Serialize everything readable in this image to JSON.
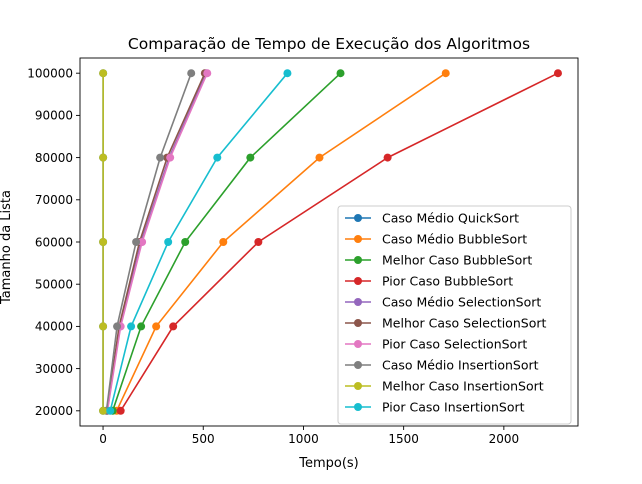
{
  "chart_data": {
    "type": "line",
    "title": "Comparação de Tempo de Execução dos Algoritmos",
    "xlabel": "Tempo(s)",
    "ylabel": "Tamanho da Lista",
    "xlim": [
      -115,
      2370
    ],
    "ylim": [
      16400,
      103600
    ],
    "x_ticks": [
      0,
      500,
      1000,
      1500,
      2000
    ],
    "y_ticks": [
      20000,
      30000,
      40000,
      50000,
      60000,
      70000,
      80000,
      90000,
      100000
    ],
    "grid": false,
    "legend_position": "lower right",
    "series": [
      {
        "name": "Caso Médio QuickSort",
        "color": "#1f77b4",
        "points": [
          [
            0.1,
            20000
          ],
          [
            0.2,
            40000
          ],
          [
            0.3,
            60000
          ],
          [
            0.4,
            80000
          ],
          [
            0.5,
            100000
          ]
        ]
      },
      {
        "name": "Caso Médio BubbleSort",
        "color": "#ff7f0e",
        "points": [
          [
            68,
            20000
          ],
          [
            265,
            40000
          ],
          [
            600,
            60000
          ],
          [
            1080,
            80000
          ],
          [
            1710,
            100000
          ]
        ]
      },
      {
        "name": "Melhor Caso BubbleSort",
        "color": "#2ca02c",
        "points": [
          [
            48,
            20000
          ],
          [
            190,
            40000
          ],
          [
            410,
            60000
          ],
          [
            735,
            80000
          ],
          [
            1185,
            100000
          ]
        ]
      },
      {
        "name": "Pior Caso BubbleSort",
        "color": "#d62728",
        "points": [
          [
            88,
            20000
          ],
          [
            350,
            40000
          ],
          [
            775,
            60000
          ],
          [
            1420,
            80000
          ],
          [
            2270,
            100000
          ]
        ]
      },
      {
        "name": "Caso Médio SelectionSort",
        "color": "#9467bd",
        "points": [
          [
            21,
            20000
          ],
          [
            85,
            40000
          ],
          [
            190,
            60000
          ],
          [
            330,
            80000
          ],
          [
            515,
            100000
          ]
        ]
      },
      {
        "name": "Melhor Caso SelectionSort",
        "color": "#8c564b",
        "points": [
          [
            20,
            20000
          ],
          [
            80,
            40000
          ],
          [
            182,
            60000
          ],
          [
            320,
            80000
          ],
          [
            508,
            100000
          ]
        ]
      },
      {
        "name": "Pior Caso SelectionSort",
        "color": "#e377c2",
        "points": [
          [
            22,
            20000
          ],
          [
            88,
            40000
          ],
          [
            195,
            60000
          ],
          [
            335,
            80000
          ],
          [
            520,
            100000
          ]
        ]
      },
      {
        "name": "Caso Médio InsertionSort",
        "color": "#7f7f7f",
        "points": [
          [
            17,
            20000
          ],
          [
            70,
            40000
          ],
          [
            165,
            60000
          ],
          [
            285,
            80000
          ],
          [
            440,
            100000
          ]
        ]
      },
      {
        "name": "Melhor Caso InsertionSort",
        "color": "#bcbd22",
        "points": [
          [
            0.1,
            20000
          ],
          [
            0.2,
            40000
          ],
          [
            0.3,
            60000
          ],
          [
            0.4,
            80000
          ],
          [
            0.5,
            100000
          ]
        ]
      },
      {
        "name": "Pior Caso InsertionSort",
        "color": "#17becf",
        "points": [
          [
            36,
            20000
          ],
          [
            140,
            40000
          ],
          [
            325,
            60000
          ],
          [
            570,
            80000
          ],
          [
            920,
            100000
          ]
        ]
      }
    ]
  }
}
